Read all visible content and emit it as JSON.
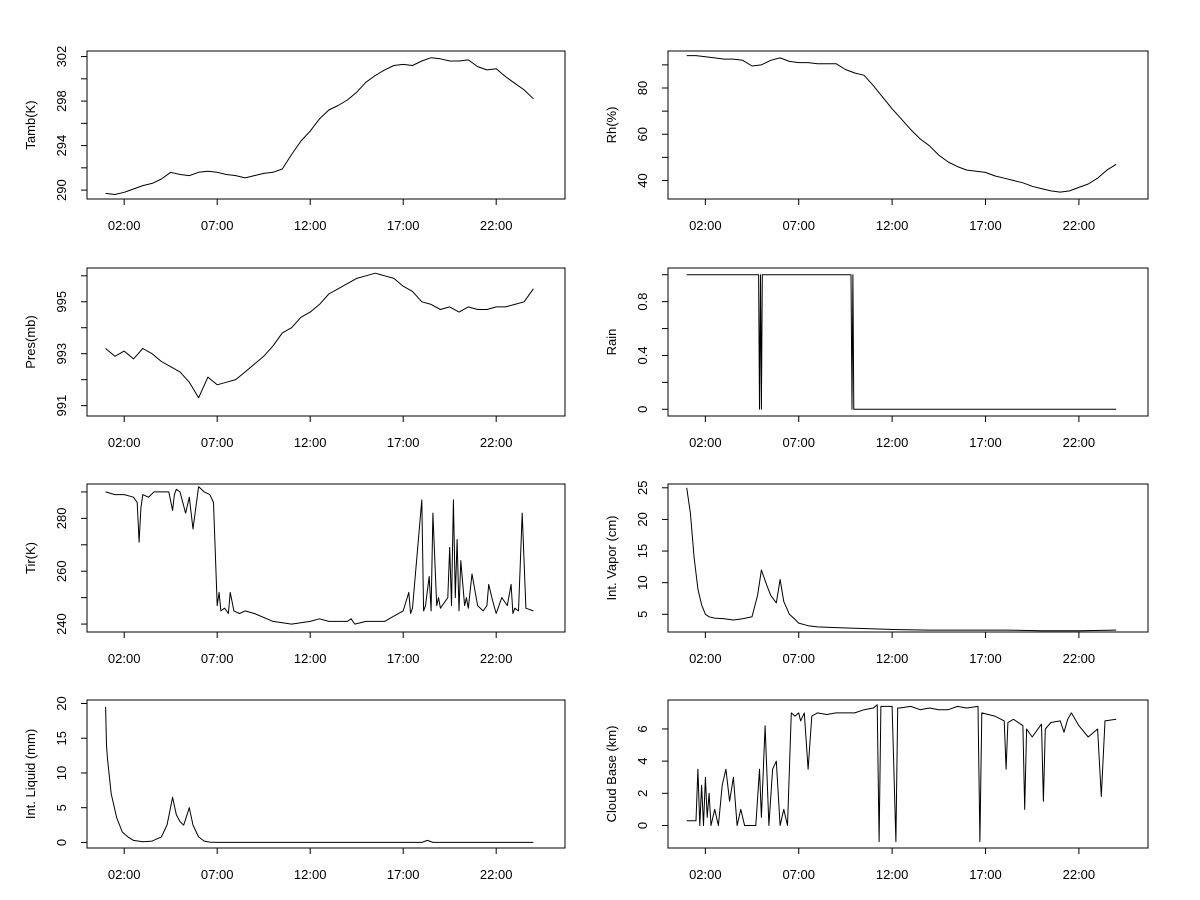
{
  "figure": {
    "background": "#ffffff",
    "line_color": "#000000"
  },
  "chart_data": [
    {
      "type": "line",
      "ylabel": "Tamb(K)",
      "xticks": [
        "02:00",
        "07:00",
        "12:00",
        "17:00",
        "22:00"
      ],
      "xlim": [
        0,
        25.7
      ],
      "ylim": [
        289.2,
        302.5
      ],
      "yticks": [
        290,
        294,
        298,
        302
      ],
      "yminor": [
        292,
        296,
        300
      ],
      "x": [
        1.0,
        1.5,
        2.0,
        2.5,
        3.0,
        3.5,
        4.0,
        4.5,
        5.0,
        5.5,
        6.0,
        6.5,
        7.0,
        7.5,
        8.0,
        8.5,
        9.0,
        9.5,
        10.0,
        10.5,
        11.0,
        11.5,
        12.0,
        12.5,
        13.0,
        13.5,
        14.0,
        14.5,
        15.0,
        15.5,
        16.0,
        16.5,
        17.0,
        17.5,
        18.0,
        18.5,
        19.0,
        19.5,
        20.0,
        20.5,
        21.0,
        21.5,
        22.0,
        22.5,
        23.0,
        23.5,
        24.0
      ],
      "series": [
        {
          "values": [
            289.7,
            289.6,
            289.8,
            290.1,
            290.4,
            290.6,
            291.0,
            291.6,
            291.4,
            291.3,
            291.6,
            291.7,
            291.6,
            291.4,
            291.3,
            291.1,
            291.3,
            291.5,
            291.6,
            291.9,
            293.2,
            294.4,
            295.3,
            296.4,
            297.2,
            297.6,
            298.1,
            298.8,
            299.7,
            300.3,
            300.8,
            301.2,
            301.3,
            301.2,
            301.6,
            301.9,
            301.8,
            301.6,
            301.6,
            301.7,
            301.1,
            300.8,
            300.9,
            300.2,
            299.6,
            299.0,
            298.2
          ]
        }
      ]
    },
    {
      "type": "line",
      "ylabel": "Rh(%)",
      "xticks": [
        "02:00",
        "07:00",
        "12:00",
        "17:00",
        "22:00"
      ],
      "xlim": [
        0,
        25.7
      ],
      "ylim": [
        32,
        96
      ],
      "yticks": [
        40,
        60,
        80
      ],
      "yminor": [
        50,
        70,
        90
      ],
      "x": [
        1.0,
        1.5,
        2.0,
        2.5,
        3.0,
        3.5,
        4.0,
        4.5,
        5.0,
        5.5,
        6.0,
        6.5,
        7.0,
        7.5,
        8.0,
        8.5,
        9.0,
        9.5,
        10.0,
        10.5,
        11.0,
        11.5,
        12.0,
        12.5,
        13.0,
        13.5,
        14.0,
        14.5,
        15.0,
        15.5,
        16.0,
        16.5,
        17.0,
        17.5,
        18.0,
        18.5,
        19.0,
        19.5,
        20.0,
        20.5,
        21.0,
        21.5,
        22.0,
        22.5,
        23.0,
        23.5,
        24.0
      ],
      "series": [
        {
          "values": [
            94.0,
            94.0,
            93.5,
            93.0,
            92.5,
            92.5,
            92.0,
            89.5,
            90.0,
            92.0,
            93.0,
            91.5,
            91.0,
            91.0,
            90.5,
            90.5,
            90.5,
            88.0,
            86.5,
            85.5,
            81.0,
            76.0,
            71.0,
            66.5,
            62.0,
            58.0,
            55.0,
            51.0,
            48.0,
            46.0,
            44.5,
            44.0,
            43.5,
            42.0,
            41.0,
            40.0,
            39.0,
            37.5,
            36.5,
            35.5,
            35.0,
            35.5,
            37.0,
            38.5,
            41.0,
            44.5,
            47.0
          ]
        }
      ]
    },
    {
      "type": "line",
      "ylabel": "Pres(mb)",
      "xticks": [
        "02:00",
        "07:00",
        "12:00",
        "17:00",
        "22:00"
      ],
      "xlim": [
        0,
        25.7
      ],
      "ylim": [
        990.6,
        996.3
      ],
      "yticks": [
        991,
        993,
        995
      ],
      "yminor": [
        992,
        994,
        996
      ],
      "x": [
        1.0,
        1.5,
        2.0,
        2.5,
        3.0,
        3.5,
        4.0,
        4.5,
        5.0,
        5.5,
        6.0,
        6.5,
        7.0,
        7.5,
        8.0,
        8.5,
        9.0,
        9.5,
        10.0,
        10.5,
        11.0,
        11.5,
        12.0,
        12.5,
        13.0,
        13.5,
        14.0,
        14.5,
        15.0,
        15.5,
        16.0,
        16.5,
        17.0,
        17.5,
        18.0,
        18.5,
        19.0,
        19.5,
        20.0,
        20.5,
        21.0,
        21.5,
        22.0,
        22.5,
        23.0,
        23.5,
        24.0
      ],
      "series": [
        {
          "values": [
            993.2,
            992.9,
            993.1,
            992.8,
            993.2,
            993.0,
            992.7,
            992.5,
            992.3,
            991.9,
            991.3,
            992.1,
            991.8,
            991.9,
            992.0,
            992.3,
            992.6,
            992.9,
            993.3,
            993.8,
            994.0,
            994.4,
            994.6,
            994.9,
            995.3,
            995.5,
            995.7,
            995.9,
            996.0,
            996.1,
            996.0,
            995.9,
            995.6,
            995.4,
            995.0,
            994.9,
            994.7,
            994.8,
            994.6,
            994.8,
            994.7,
            994.7,
            994.8,
            994.8,
            994.9,
            995.0,
            995.5
          ]
        }
      ]
    },
    {
      "type": "line",
      "ylabel": "Rain",
      "xticks": [
        "02:00",
        "07:00",
        "12:00",
        "17:00",
        "22:00"
      ],
      "xlim": [
        0,
        25.7
      ],
      "ylim": [
        -0.05,
        1.05
      ],
      "yticks": [
        0.0,
        0.4,
        0.8
      ],
      "yminor": [
        0.2,
        0.6,
        1.0
      ],
      "x": [
        1.0,
        4.85,
        4.9,
        4.95,
        5.0,
        5.05,
        9.8,
        9.85,
        9.9,
        9.95,
        24.0
      ],
      "series": [
        {
          "values": [
            1,
            1,
            0,
            1,
            0,
            1,
            1,
            0,
            1,
            0,
            0
          ]
        }
      ]
    },
    {
      "type": "line",
      "ylabel": "Tir(K)",
      "xticks": [
        "02:00",
        "07:00",
        "12:00",
        "17:00",
        "22:00"
      ],
      "xlim": [
        0,
        25.7
      ],
      "ylim": [
        237,
        293
      ],
      "yticks": [
        240,
        260,
        280
      ],
      "yminor": [
        250,
        270,
        290
      ],
      "x": [
        1.0,
        1.5,
        2.0,
        2.5,
        2.7,
        2.8,
        2.9,
        3.0,
        3.3,
        3.6,
        4.0,
        4.4,
        4.6,
        4.7,
        4.8,
        5.0,
        5.3,
        5.5,
        5.7,
        6.0,
        6.3,
        6.6,
        6.8,
        7.0,
        7.1,
        7.2,
        7.4,
        7.6,
        7.7,
        7.9,
        8.2,
        8.5,
        9.0,
        10.0,
        11.0,
        12.0,
        12.5,
        13.0,
        14.0,
        14.2,
        14.4,
        15.0,
        16.0,
        16.5,
        17.0,
        17.3,
        17.4,
        17.5,
        18.0,
        18.1,
        18.2,
        18.4,
        18.5,
        18.6,
        18.8,
        18.9,
        19.0,
        19.4,
        19.5,
        19.6,
        19.7,
        19.8,
        19.9,
        20.0,
        20.1,
        20.3,
        20.4,
        20.5,
        20.7,
        21.0,
        21.3,
        21.5,
        21.6,
        21.8,
        22.0,
        22.3,
        22.6,
        22.8,
        22.9,
        23.0,
        23.2,
        23.4,
        23.6,
        24.0
      ],
      "series": [
        {
          "values": [
            290,
            289,
            289,
            288,
            286,
            271,
            284,
            289,
            288,
            290,
            290,
            290,
            283,
            289,
            291,
            290,
            282,
            288,
            276,
            292,
            290,
            289,
            286,
            247,
            252,
            245,
            246,
            244,
            252,
            245,
            244,
            245,
            244,
            241,
            240,
            241,
            242,
            241,
            241,
            242,
            240,
            241,
            241,
            243,
            245,
            252,
            244,
            246,
            287,
            245,
            247,
            258,
            245,
            282,
            247,
            250,
            246,
            250,
            269,
            247,
            287,
            250,
            272,
            245,
            264,
            247,
            250,
            246,
            259,
            247,
            245,
            247,
            255,
            249,
            244,
            250,
            247,
            255,
            244,
            246,
            245,
            282,
            246,
            245
          ]
        }
      ]
    },
    {
      "type": "line",
      "ylabel": "Int. Vapor (cm)",
      "xticks": [
        "02:00",
        "07:00",
        "12:00",
        "17:00",
        "22:00"
      ],
      "xlim": [
        0,
        25.7
      ],
      "ylim": [
        2.2,
        25.6
      ],
      "yticks": [
        5,
        10,
        15,
        20,
        25
      ],
      "yminor": [],
      "x": [
        1.0,
        1.2,
        1.4,
        1.6,
        1.8,
        2.0,
        2.2,
        2.5,
        3.0,
        3.5,
        4.0,
        4.5,
        4.8,
        5.0,
        5.3,
        5.5,
        5.8,
        6.0,
        6.2,
        6.5,
        6.8,
        7.0,
        7.5,
        8.0,
        9.0,
        10.0,
        12.0,
        14.0,
        16.0,
        18.0,
        20.0,
        22.0,
        24.0
      ],
      "series": [
        {
          "values": [
            25.0,
            21.0,
            14.0,
            9.0,
            6.5,
            5.0,
            4.6,
            4.4,
            4.3,
            4.1,
            4.3,
            4.6,
            8.0,
            12.0,
            9.5,
            8.0,
            6.8,
            10.5,
            7.0,
            5.0,
            4.2,
            3.6,
            3.2,
            3.0,
            2.9,
            2.8,
            2.6,
            2.5,
            2.5,
            2.5,
            2.4,
            2.4,
            2.5
          ]
        }
      ]
    },
    {
      "type": "line",
      "ylabel": "Int. Liquid (mm)",
      "xticks": [
        "02:00",
        "07:00",
        "12:00",
        "17:00",
        "22:00"
      ],
      "xlim": [
        0,
        25.7
      ],
      "ylim": [
        -0.8,
        20.5
      ],
      "yticks": [
        0,
        5,
        10,
        15,
        20
      ],
      "yminor": [],
      "x": [
        1.0,
        1.05,
        1.1,
        1.3,
        1.6,
        1.9,
        2.2,
        2.5,
        3.0,
        3.5,
        4.0,
        4.3,
        4.6,
        4.8,
        5.0,
        5.2,
        5.5,
        5.7,
        6.0,
        6.3,
        6.6,
        7.0,
        8.0,
        10.0,
        12.0,
        14.0,
        16.0,
        18.0,
        18.3,
        18.6,
        20.0,
        22.0,
        24.0
      ],
      "series": [
        {
          "values": [
            19.5,
            14.0,
            12.0,
            7.0,
            3.5,
            1.5,
            0.8,
            0.3,
            0.1,
            0.2,
            0.8,
            2.5,
            6.5,
            4.0,
            3.0,
            2.5,
            5.0,
            2.5,
            0.8,
            0.2,
            0.05,
            0.0,
            0.0,
            0.0,
            0.0,
            0.0,
            0.0,
            0.0,
            0.3,
            0.0,
            0.0,
            0.0,
            0.0
          ]
        }
      ]
    },
    {
      "type": "line",
      "ylabel": "Cloud Base (km)",
      "xticks": [
        "02:00",
        "07:00",
        "12:00",
        "17:00",
        "22:00"
      ],
      "xlim": [
        0,
        25.7
      ],
      "ylim": [
        -1.4,
        7.8
      ],
      "yticks": [
        0,
        2,
        4,
        6
      ],
      "yminor": [],
      "x": [
        1.0,
        1.5,
        1.6,
        1.7,
        1.8,
        1.9,
        2.0,
        2.1,
        2.2,
        2.3,
        2.5,
        2.7,
        2.9,
        3.1,
        3.3,
        3.5,
        3.7,
        3.9,
        4.1,
        4.3,
        4.5,
        4.7,
        4.9,
        5.0,
        5.2,
        5.4,
        5.6,
        5.8,
        6.0,
        6.2,
        6.4,
        6.6,
        6.8,
        7.0,
        7.1,
        7.3,
        7.5,
        7.7,
        8.0,
        8.5,
        9.0,
        9.5,
        10.0,
        10.5,
        11.0,
        11.2,
        11.3,
        11.4,
        12.0,
        12.2,
        12.3,
        12.4,
        13.0,
        13.5,
        14.0,
        14.5,
        15.0,
        15.5,
        16.0,
        16.6,
        16.7,
        16.8,
        17.5,
        18.0,
        18.1,
        18.2,
        18.5,
        19.0,
        19.1,
        19.2,
        19.5,
        20.0,
        20.1,
        20.2,
        20.5,
        21.0,
        21.2,
        21.4,
        21.6,
        22.0,
        22.5,
        23.0,
        23.2,
        23.4,
        24.0
      ],
      "series": [
        {
          "values": [
            0.3,
            0.3,
            3.5,
            0.0,
            2.5,
            0.0,
            3.0,
            0.5,
            2.0,
            0.0,
            1.0,
            0.0,
            2.5,
            3.5,
            1.5,
            3.0,
            0.0,
            1.0,
            0.0,
            0.0,
            0.0,
            0.0,
            3.5,
            0.5,
            6.2,
            0.0,
            3.5,
            4.0,
            0.0,
            1.0,
            0.0,
            7.0,
            6.8,
            7.0,
            6.5,
            7.0,
            3.5,
            6.8,
            7.0,
            6.9,
            7.0,
            7.0,
            7.0,
            7.2,
            7.3,
            7.5,
            -1.0,
            7.4,
            7.4,
            -1.0,
            7.3,
            7.3,
            7.4,
            7.2,
            7.3,
            7.2,
            7.2,
            7.4,
            7.3,
            7.4,
            -1.0,
            7.0,
            6.8,
            6.5,
            3.5,
            6.4,
            6.6,
            6.2,
            1.0,
            6.0,
            5.5,
            6.3,
            1.5,
            6.0,
            6.4,
            6.5,
            5.8,
            6.6,
            7.0,
            6.2,
            5.5,
            6.0,
            1.8,
            6.5,
            6.6
          ]
        }
      ]
    }
  ]
}
